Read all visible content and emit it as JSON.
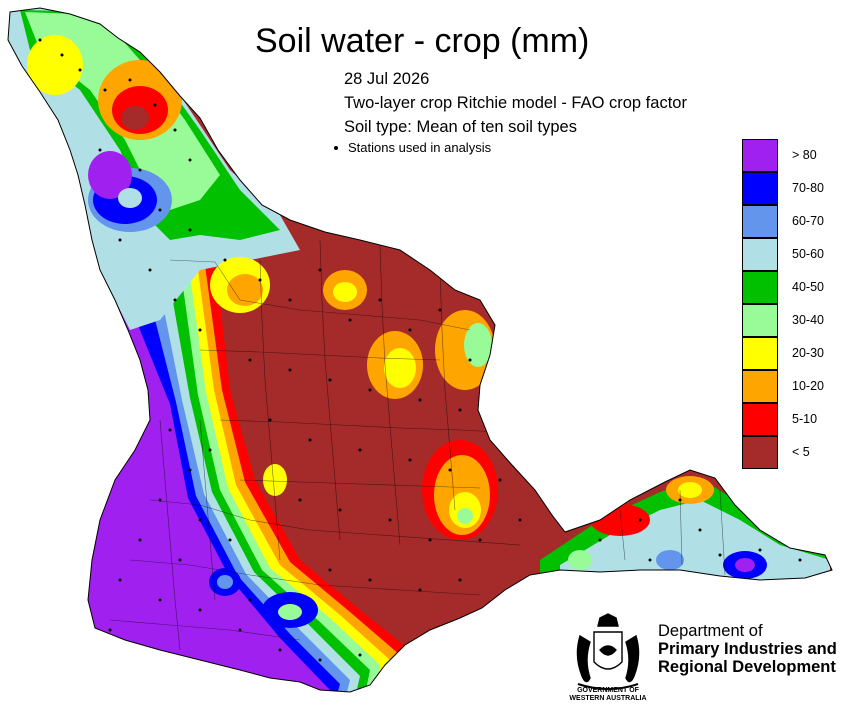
{
  "title": "Soil water - crop (mm)",
  "date": "28 Jul 2026",
  "model": "Two-layer crop Ritchie model - FAO crop factor",
  "soil_type": "Soil type: Mean of ten soil types",
  "stations_label": "Stations used in analysis",
  "legend": [
    {
      "label": "> 80",
      "color": "#a020f0"
    },
    {
      "label": "70-80",
      "color": "#0000ff"
    },
    {
      "label": "60-70",
      "color": "#6495ed"
    },
    {
      "label": "50-60",
      "color": "#b0e0e6"
    },
    {
      "label": "40-50",
      "color": "#00c000"
    },
    {
      "label": "30-40",
      "color": "#98fb98"
    },
    {
      "label": "20-30",
      "color": "#ffff00"
    },
    {
      "label": "10-20",
      "color": "#ffa500"
    },
    {
      "label": "5-10",
      "color": "#ff0000"
    },
    {
      "label": "< 5",
      "color": "#a52a2a"
    }
  ],
  "department": {
    "line1": "Department of",
    "line2": "Primary Industries and",
    "line3": "Regional Development"
  },
  "government": {
    "line1": "GOVERNMENT OF",
    "line2": "WESTERN AUSTRALIA"
  }
}
